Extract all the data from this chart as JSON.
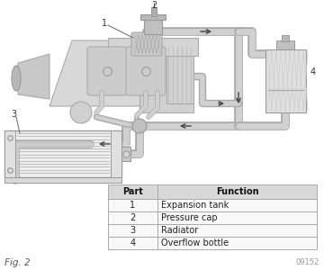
{
  "fig_label": "Fig. 2",
  "fig_number": "09152",
  "table_headers": [
    "Part",
    "Function"
  ],
  "table_rows": [
    [
      "1",
      "Expansion tank"
    ],
    [
      "2",
      "Pressure cap"
    ],
    [
      "3",
      "Radiator"
    ],
    [
      "4",
      "Overflow bottle"
    ]
  ],
  "colors": {
    "background": "#ffffff",
    "table_header_bg": "#d8d8d8",
    "table_border": "#aaaaaa",
    "engine_fill": "#d4d4d4",
    "engine_edge": "#999999",
    "cylinder_fill": "#cccccc",
    "hose_fill": "#c8c8c8",
    "hose_edge": "#999999",
    "radiator_fill": "#e0e0e0",
    "overflow_fill": "#e8e8e8",
    "text_dark": "#222222",
    "text_gray": "#666666",
    "arrow_color": "#444444"
  }
}
